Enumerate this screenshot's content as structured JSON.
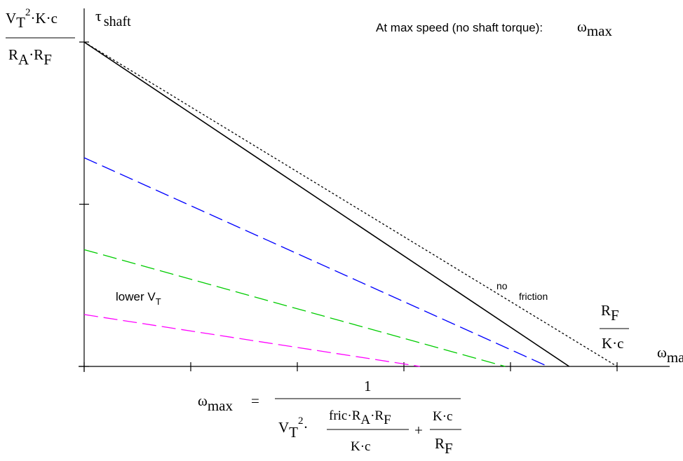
{
  "chart_data": {
    "type": "line",
    "xlim": [
      0,
      5.5
    ],
    "ylim": [
      0,
      3
    ],
    "x_ticks": [
      0,
      1,
      2,
      3,
      4,
      5
    ],
    "y_ticks": [
      0,
      1.5,
      3
    ],
    "grid": false,
    "series": [
      {
        "style": "dotted",
        "color": "#000000",
        "x": [
          0,
          5
        ],
        "y": [
          3,
          0
        ]
      },
      {
        "style": "solid",
        "color": "#000000",
        "x": [
          0,
          4.55
        ],
        "y": [
          3,
          0
        ]
      },
      {
        "style": "dashed",
        "color": "#0000ff",
        "x": [
          0,
          4.35
        ],
        "y": [
          1.93,
          0
        ]
      },
      {
        "style": "dashed",
        "color": "#00cc00",
        "x": [
          0,
          3.95
        ],
        "y": [
          1.08,
          0
        ]
      },
      {
        "style": "dashed",
        "color": "#ff00ff",
        "x": [
          0,
          3.15
        ],
        "y": [
          0.48,
          0
        ]
      }
    ]
  },
  "labels": {
    "y_axis_main": "τ",
    "y_axis_sub": "shaft",
    "x_axis_main": "ω",
    "x_axis_sub": "max",
    "y_intercept_num_a": "V",
    "y_intercept_num_b": "T",
    "y_intercept_num_c": "2",
    "y_intercept_num_d": "·K·c",
    "y_intercept_den_a": "R",
    "y_intercept_den_b": "A",
    "y_intercept_den_c": "·R",
    "y_intercept_den_d": "F",
    "x_intercept_num_a": "R",
    "x_intercept_num_b": "F",
    "x_intercept_den": "K·c",
    "top_note": "At max speed (no shaft torque):",
    "top_note_omega": "ω",
    "top_note_sub": "max",
    "no_friction_a": "no",
    "no_friction_b": "friction",
    "lower_vt_a": "lower V",
    "lower_vt_b": "T",
    "formula_lhs_a": "ω",
    "formula_lhs_b": "max",
    "formula_eq": "=",
    "formula_num": "1",
    "formula_v": "V",
    "formula_t": "T",
    "formula_2": "2",
    "formula_dot": "·",
    "formula_fric_num_a": "fric·R",
    "formula_fric_num_b": "A",
    "formula_fric_num_c": "·R",
    "formula_fric_num_d": "F",
    "formula_fric_den": "K·c",
    "formula_plus": "+",
    "formula_kc_num": "K·c",
    "formula_kc_den_a": "R",
    "formula_kc_den_b": "F"
  }
}
